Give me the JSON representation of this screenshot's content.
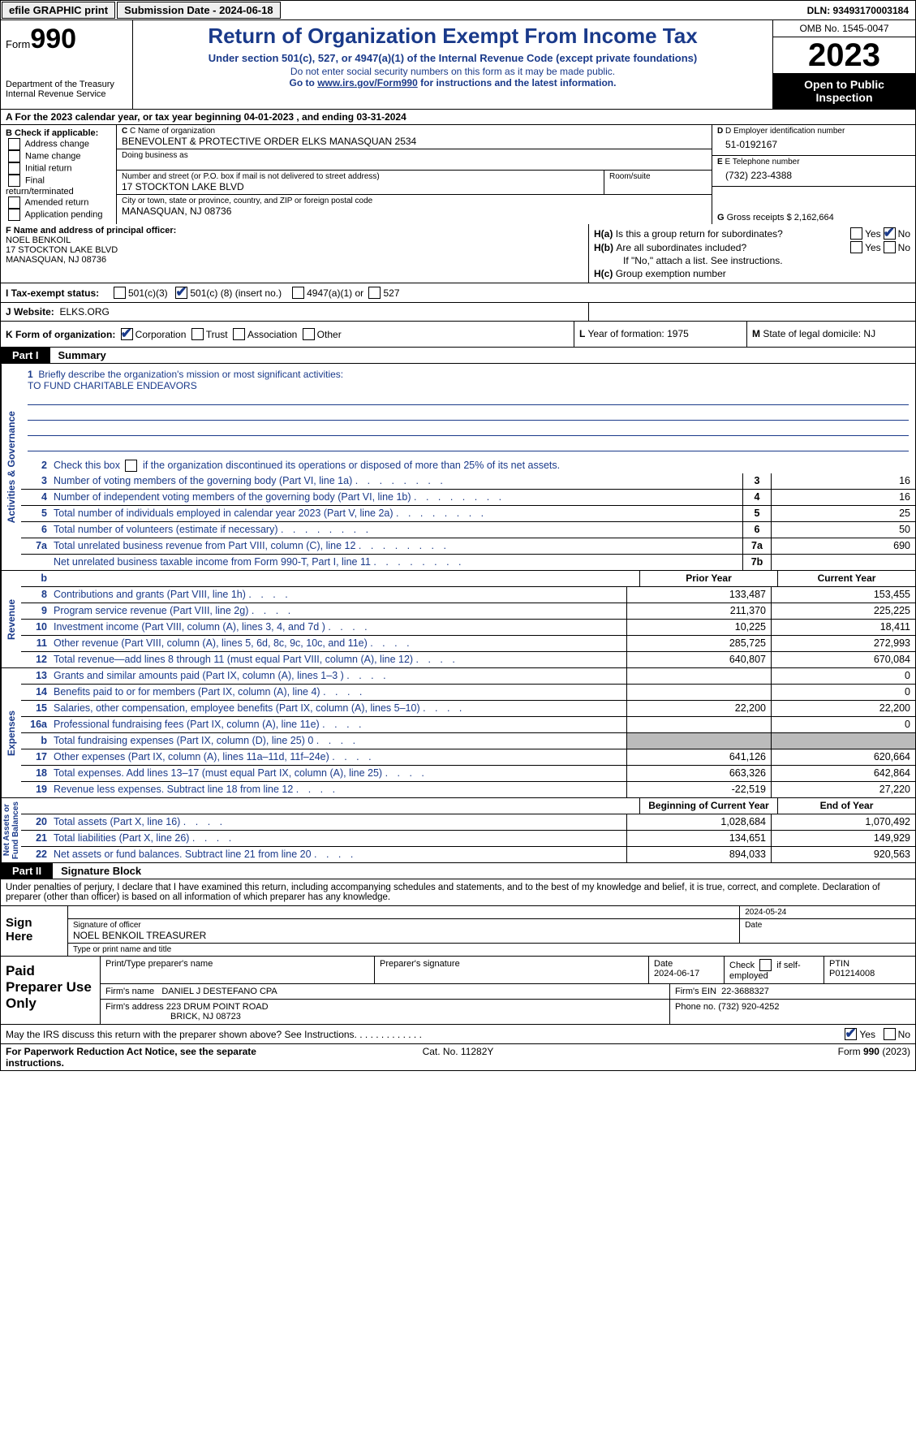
{
  "topbar": {
    "efile": "efile GRAPHIC print",
    "submission_label": "Submission Date - 2024-06-18",
    "dln": "DLN: 93493170003184"
  },
  "header": {
    "form_word": "Form",
    "form_num": "990",
    "dept": "Department of the Treasury\nInternal Revenue Service",
    "title": "Return of Organization Exempt From Income Tax",
    "sub": "Under section 501(c), 527, or 4947(a)(1) of the Internal Revenue Code (except private foundations)",
    "note1": "Do not enter social security numbers on this form as it may be made public.",
    "note2_pre": "Go to ",
    "note2_link": "www.irs.gov/Form990",
    "note2_post": " for instructions and the latest information.",
    "omb": "OMB No. 1545-0047",
    "year": "2023",
    "inspect": "Open to Public Inspection"
  },
  "rowA": "A For the 2023 calendar year, or tax year beginning 04-01-2023    , and ending 03-31-2024",
  "boxB": {
    "title": "B Check if applicable:",
    "opts": [
      "Address change",
      "Name change",
      "Initial return",
      "Final return/terminated",
      "Amended return",
      "Application pending"
    ]
  },
  "boxC": {
    "name_lbl": "C Name of organization",
    "name": "BENEVOLENT & PROTECTIVE ORDER ELKS MANASQUAN 2534",
    "dba_lbl": "Doing business as",
    "street_lbl": "Number and street (or P.O. box if mail is not delivered to street address)",
    "street": "17 STOCKTON LAKE BLVD",
    "room_lbl": "Room/suite",
    "city_lbl": "City or town, state or province, country, and ZIP or foreign postal code",
    "city": "MANASQUAN, NJ  08736"
  },
  "boxD": {
    "lbl": "D Employer identification number",
    "val": "51-0192167"
  },
  "boxE": {
    "lbl": "E Telephone number",
    "val": "(732) 223-4388"
  },
  "boxG": {
    "lbl": "G",
    "txt": "Gross receipts $",
    "val": "2,162,664"
  },
  "boxF": {
    "lbl": "F  Name and address of principal officer:",
    "name": "NOEL BENKOIL",
    "addr1": "17 STOCKTON LAKE BLVD",
    "addr2": "MANASQUAN, NJ  08736"
  },
  "boxH": {
    "a_lbl": "H(a)",
    "a_txt": "Is this a group return for subordinates?",
    "b_lbl": "H(b)",
    "b_txt": "Are all subordinates included?",
    "note": "If \"No,\" attach a list. See instructions.",
    "c_lbl": "H(c)",
    "c_txt": "Group exemption number"
  },
  "rowI": {
    "lbl": "I   Tax-exempt status:",
    "o1": "501(c)(3)",
    "o2_pre": "501(c) (",
    "o2_val": "8",
    "o2_post": ") (insert no.)",
    "o3": "4947(a)(1) or",
    "o4": "527"
  },
  "rowJ": {
    "lbl": "J   Website:",
    "val": "ELKS.ORG"
  },
  "rowK": {
    "lbl": "K Form of organization:",
    "opts": [
      "Corporation",
      "Trust",
      "Association",
      "Other"
    ],
    "L_lbl": "L",
    "L_txt": "Year of formation:",
    "L_val": "1975",
    "M_lbl": "M",
    "M_txt": "State of legal domicile:",
    "M_val": "NJ"
  },
  "part1": {
    "tag": "Part I",
    "title": "Summary"
  },
  "summary": {
    "l1_lbl": "1",
    "l1_txt": "Briefly describe the organization's mission or most significant activities:",
    "mission": "TO FUND CHARITABLE ENDEAVORS",
    "l2_lbl": "2",
    "l2_txt": "Check this box        if the organization discontinued its operations or disposed of more than 25% of its net assets.",
    "rows": [
      {
        "n": "3",
        "d": "Number of voting members of the governing body (Part VI, line 1a)",
        "box": "3",
        "v": "16"
      },
      {
        "n": "4",
        "d": "Number of independent voting members of the governing body (Part VI, line 1b)",
        "box": "4",
        "v": "16"
      },
      {
        "n": "5",
        "d": "Total number of individuals employed in calendar year 2023 (Part V, line 2a)",
        "box": "5",
        "v": "25"
      },
      {
        "n": "6",
        "d": "Total number of volunteers (estimate if necessary)",
        "box": "6",
        "v": "50"
      },
      {
        "n": "7a",
        "d": "Total unrelated business revenue from Part VIII, column (C), line 12",
        "box": "7a",
        "v": "690"
      },
      {
        "n": "",
        "d": "Net unrelated business taxable income from Form 990-T, Part I, line 11",
        "box": "7b",
        "v": ""
      }
    ],
    "col_b": "b",
    "col_prior": "Prior Year",
    "col_curr": "Current Year",
    "revenue": [
      {
        "n": "8",
        "d": "Contributions and grants (Part VIII, line 1h)",
        "p": "133,487",
        "c": "153,455"
      },
      {
        "n": "9",
        "d": "Program service revenue (Part VIII, line 2g)",
        "p": "211,370",
        "c": "225,225"
      },
      {
        "n": "10",
        "d": "Investment income (Part VIII, column (A), lines 3, 4, and 7d )",
        "p": "10,225",
        "c": "18,411"
      },
      {
        "n": "11",
        "d": "Other revenue (Part VIII, column (A), lines 5, 6d, 8c, 9c, 10c, and 11e)",
        "p": "285,725",
        "c": "272,993"
      },
      {
        "n": "12",
        "d": "Total revenue—add lines 8 through 11 (must equal Part VIII, column (A), line 12)",
        "p": "640,807",
        "c": "670,084"
      }
    ],
    "expenses": [
      {
        "n": "13",
        "d": "Grants and similar amounts paid (Part IX, column (A), lines 1–3 )",
        "p": "",
        "c": "0"
      },
      {
        "n": "14",
        "d": "Benefits paid to or for members (Part IX, column (A), line 4)",
        "p": "",
        "c": "0"
      },
      {
        "n": "15",
        "d": "Salaries, other compensation, employee benefits (Part IX, column (A), lines 5–10)",
        "p": "22,200",
        "c": "22,200"
      },
      {
        "n": "16a",
        "d": "Professional fundraising fees (Part IX, column (A), line 11e)",
        "p": "",
        "c": "0"
      },
      {
        "n": "b",
        "d": "Total fundraising expenses (Part IX, column (D), line 25) 0",
        "p": "shade",
        "c": "shade"
      },
      {
        "n": "17",
        "d": "Other expenses (Part IX, column (A), lines 11a–11d, 11f–24e)",
        "p": "641,126",
        "c": "620,664"
      },
      {
        "n": "18",
        "d": "Total expenses. Add lines 13–17 (must equal Part IX, column (A), line 25)",
        "p": "663,326",
        "c": "642,864"
      },
      {
        "n": "19",
        "d": "Revenue less expenses. Subtract line 18 from line 12",
        "p": "-22,519",
        "c": "27,220"
      }
    ],
    "col_begin": "Beginning of Current Year",
    "col_end": "End of Year",
    "net": [
      {
        "n": "20",
        "d": "Total assets (Part X, line 16)",
        "p": "1,028,684",
        "c": "1,070,492"
      },
      {
        "n": "21",
        "d": "Total liabilities (Part X, line 26)",
        "p": "134,651",
        "c": "149,929"
      },
      {
        "n": "22",
        "d": "Net assets or fund balances. Subtract line 21 from line 20",
        "p": "894,033",
        "c": "920,563"
      }
    ]
  },
  "sidelabels": {
    "gov": "Activities & Governance",
    "rev": "Revenue",
    "exp": "Expenses",
    "net": "Net Assets or\nFund Balances"
  },
  "part2": {
    "tag": "Part II",
    "title": "Signature Block"
  },
  "perjury": "Under penalties of perjury, I declare that I have examined this return, including accompanying schedules and statements, and to the best of my knowledge and belief, it is true, correct, and complete. Declaration of preparer (other than officer) is based on all information of which preparer has any knowledge.",
  "sign": {
    "side": "Sign Here",
    "date": "2024-05-24",
    "sig_lbl": "Signature of officer",
    "name": "NOEL BENKOIL  TREASURER",
    "name_lbl": "Type or print name and title",
    "date_lbl": "Date"
  },
  "paid": {
    "side": "Paid Preparer Use Only",
    "h1": "Print/Type preparer's name",
    "h2": "Preparer's signature",
    "h3": "Date",
    "h3v": "2024-06-17",
    "h4": "Check        if self-employed",
    "h5": "PTIN",
    "h5v": "P01214008",
    "firm_lbl": "Firm's name",
    "firm": "DANIEL J DESTEFANO CPA",
    "ein_lbl": "Firm's EIN",
    "ein": "22-3688327",
    "addr_lbl": "Firm's address",
    "addr1": "223 DRUM POINT ROAD",
    "addr2": "BRICK, NJ  08723",
    "phone_lbl": "Phone no.",
    "phone": "(732) 920-4252"
  },
  "irs_discuss": "May the IRS discuss this return with the preparer shown above? See Instructions.",
  "footer": {
    "l": "For Paperwork Reduction Act Notice, see the separate instructions.",
    "m": "Cat. No. 11282Y",
    "r_pre": "Form ",
    "r_b": "990",
    "r_post": " (2023)"
  },
  "yn": {
    "yes": "Yes",
    "no": "No"
  }
}
